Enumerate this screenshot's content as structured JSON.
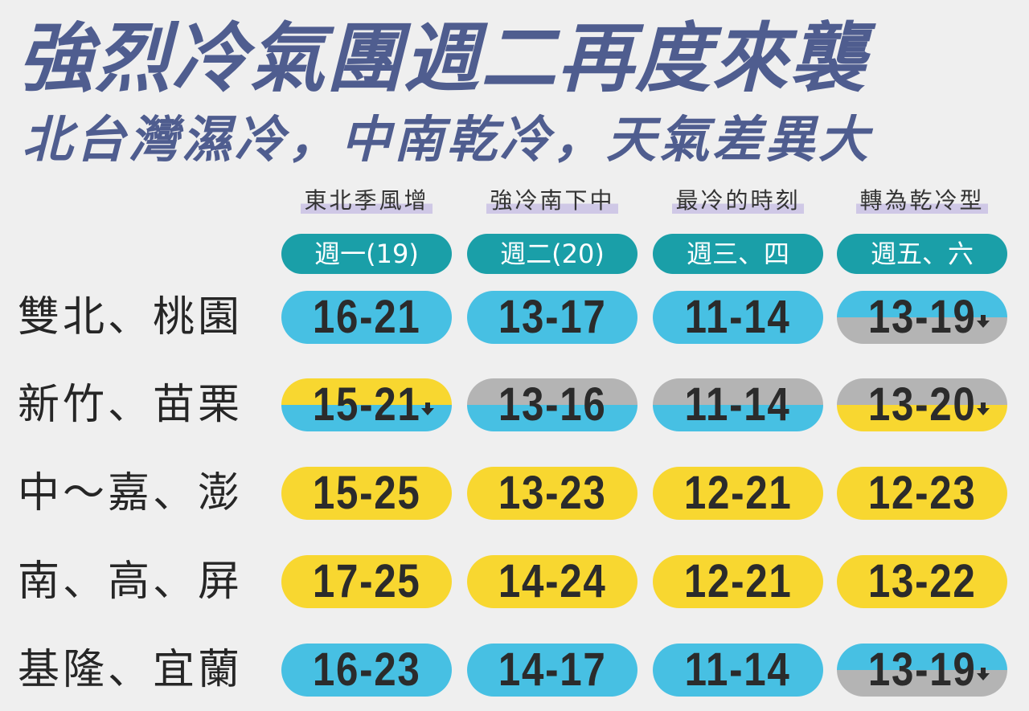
{
  "title": "強烈冷氣團週二再度來襲",
  "subtitle": "北台灣濕冷，中南乾冷，天氣差異大",
  "colors": {
    "blue": "#47c0e3",
    "yellow": "#f8d730",
    "gray": "#b4b4b4",
    "teal": "#1a9fa8",
    "title": "#4f5d8f"
  },
  "phases": [
    "東北季風增",
    "強冷南下中",
    "最冷的時刻",
    "轉為乾冷型"
  ],
  "days": [
    "週一(19)",
    "週二(20)",
    "週三、四",
    "週五、六"
  ],
  "rows": [
    {
      "region": "雙北、桃園",
      "cells": [
        {
          "temp": "16-21",
          "top": "blue",
          "bottom": "blue",
          "arrow": false
        },
        {
          "temp": "13-17",
          "top": "blue",
          "bottom": "blue",
          "arrow": false
        },
        {
          "temp": "11-14",
          "top": "blue",
          "bottom": "blue",
          "arrow": false
        },
        {
          "temp": "13-19",
          "top": "blue",
          "bottom": "gray",
          "arrow": true
        }
      ]
    },
    {
      "region": "新竹、苗栗",
      "cells": [
        {
          "temp": "15-21",
          "top": "yellow",
          "bottom": "blue",
          "arrow": true
        },
        {
          "temp": "13-16",
          "top": "gray",
          "bottom": "blue",
          "arrow": false
        },
        {
          "temp": "11-14",
          "top": "gray",
          "bottom": "blue",
          "arrow": false
        },
        {
          "temp": "13-20",
          "top": "gray",
          "bottom": "yellow",
          "arrow": true
        }
      ]
    },
    {
      "region": "中～嘉、澎",
      "cells": [
        {
          "temp": "15-25",
          "top": "yellow",
          "bottom": "yellow",
          "arrow": false
        },
        {
          "temp": "13-23",
          "top": "yellow",
          "bottom": "yellow",
          "arrow": false
        },
        {
          "temp": "12-21",
          "top": "yellow",
          "bottom": "yellow",
          "arrow": false
        },
        {
          "temp": "12-23",
          "top": "yellow",
          "bottom": "yellow",
          "arrow": false
        }
      ]
    },
    {
      "region": "南、高、屏",
      "cells": [
        {
          "temp": "17-25",
          "top": "yellow",
          "bottom": "yellow",
          "arrow": false
        },
        {
          "temp": "14-24",
          "top": "yellow",
          "bottom": "yellow",
          "arrow": false
        },
        {
          "temp": "12-21",
          "top": "yellow",
          "bottom": "yellow",
          "arrow": false
        },
        {
          "temp": "13-22",
          "top": "yellow",
          "bottom": "yellow",
          "arrow": false
        }
      ]
    },
    {
      "region": "基隆、宜蘭",
      "cells": [
        {
          "temp": "16-23",
          "top": "blue",
          "bottom": "blue",
          "arrow": false
        },
        {
          "temp": "14-17",
          "top": "blue",
          "bottom": "blue",
          "arrow": false
        },
        {
          "temp": "11-14",
          "top": "blue",
          "bottom": "blue",
          "arrow": false
        },
        {
          "temp": "13-19",
          "top": "blue",
          "bottom": "gray",
          "arrow": true
        }
      ]
    }
  ]
}
